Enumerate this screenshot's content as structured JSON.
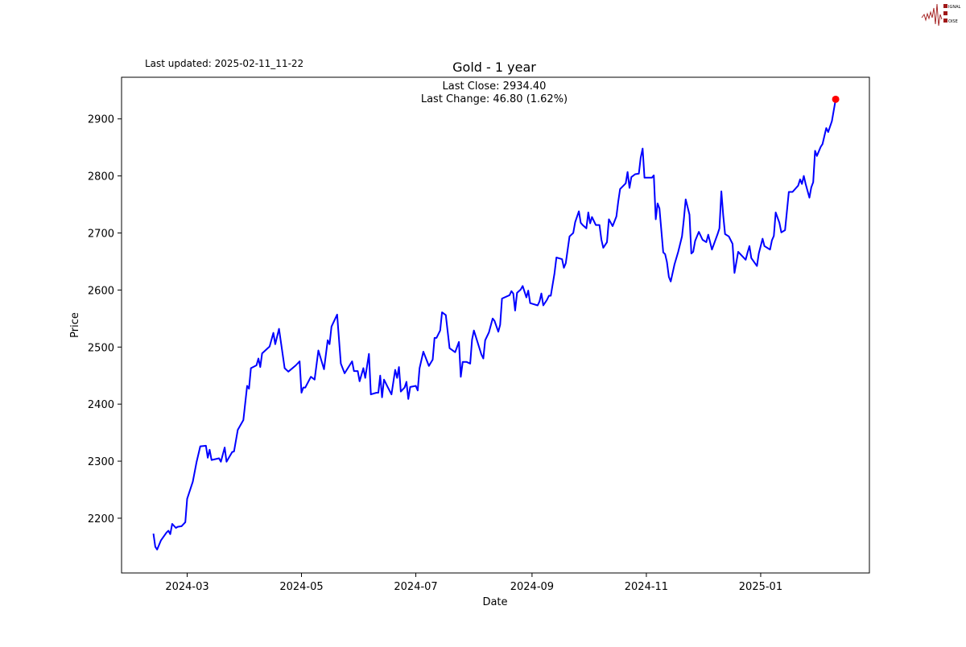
{
  "header": {
    "updated": "Last updated: 2025-02-11_11-22",
    "logo_text": "SIGNAL 2 NOISE"
  },
  "chart_data": {
    "type": "line",
    "title": "Gold - 1 year",
    "xlabel": "Date",
    "ylabel": "Price",
    "annotation": [
      "Last Close: 2934.40",
      "Last Change: 46.80 (1.62%)"
    ],
    "xlim": [
      "2024-01-26",
      "2025-02-28"
    ],
    "ylim": [
      2104,
      2973
    ],
    "grid": false,
    "line_color": "#0000ff",
    "last_point_color": "#ff0000",
    "x_ticks": [
      "2024-03",
      "2024-05",
      "2024-07",
      "2024-09",
      "2024-11",
      "2025-01"
    ],
    "y_ticks": [
      2200,
      2300,
      2400,
      2500,
      2600,
      2700,
      2800,
      2900
    ],
    "dates": [
      "2024-02-12",
      "2024-02-13",
      "2024-02-14",
      "2024-02-16",
      "2024-02-19",
      "2024-02-20",
      "2024-02-21",
      "2024-02-22",
      "2024-02-24",
      "2024-02-25",
      "2024-02-27",
      "2024-02-29",
      "2024-03-01",
      "2024-03-04",
      "2024-03-06",
      "2024-03-08",
      "2024-03-11",
      "2024-03-12",
      "2024-03-13",
      "2024-03-14",
      "2024-03-18",
      "2024-03-19",
      "2024-03-21",
      "2024-03-22",
      "2024-03-25",
      "2024-03-26",
      "2024-03-28",
      "2024-03-31",
      "2024-04-02",
      "2024-04-03",
      "2024-04-04",
      "2024-04-07",
      "2024-04-08",
      "2024-04-09",
      "2024-04-10",
      "2024-04-14",
      "2024-04-16",
      "2024-04-17",
      "2024-04-19",
      "2024-04-22",
      "2024-04-24",
      "2024-04-28",
      "2024-04-30",
      "2024-05-01",
      "2024-05-02",
      "2024-05-03",
      "2024-05-06",
      "2024-05-08",
      "2024-05-10",
      "2024-05-13",
      "2024-05-15",
      "2024-05-16",
      "2024-05-17",
      "2024-05-20",
      "2024-05-22",
      "2024-05-24",
      "2024-05-28",
      "2024-05-29",
      "2024-05-31",
      "2024-06-01",
      "2024-06-03",
      "2024-06-04",
      "2024-06-06",
      "2024-06-07",
      "2024-06-10",
      "2024-06-11",
      "2024-06-12",
      "2024-06-13",
      "2024-06-14",
      "2024-06-16",
      "2024-06-18",
      "2024-06-20",
      "2024-06-21",
      "2024-06-22",
      "2024-06-23",
      "2024-06-25",
      "2024-06-26",
      "2024-06-27",
      "2024-06-28",
      "2024-07-01",
      "2024-07-02",
      "2024-07-03",
      "2024-07-05",
      "2024-07-08",
      "2024-07-10",
      "2024-07-11",
      "2024-07-12",
      "2024-07-14",
      "2024-07-15",
      "2024-07-17",
      "2024-07-19",
      "2024-07-22",
      "2024-07-24",
      "2024-07-25",
      "2024-07-26",
      "2024-07-28",
      "2024-07-30",
      "2024-07-31",
      "2024-08-01",
      "2024-08-05",
      "2024-08-06",
      "2024-08-07",
      "2024-08-09",
      "2024-08-11",
      "2024-08-12",
      "2024-08-14",
      "2024-08-15",
      "2024-08-16",
      "2024-08-20",
      "2024-08-21",
      "2024-08-22",
      "2024-08-23",
      "2024-08-24",
      "2024-08-26",
      "2024-08-27",
      "2024-08-29",
      "2024-08-30",
      "2024-08-31",
      "2024-09-04",
      "2024-09-05",
      "2024-09-06",
      "2024-09-07",
      "2024-09-09",
      "2024-09-10",
      "2024-09-11",
      "2024-09-13",
      "2024-09-14",
      "2024-09-17",
      "2024-09-18",
      "2024-09-19",
      "2024-09-20",
      "2024-09-21",
      "2024-09-23",
      "2024-09-24",
      "2024-09-26",
      "2024-09-27",
      "2024-09-28",
      "2024-09-30",
      "2024-10-01",
      "2024-10-02",
      "2024-10-03",
      "2024-10-05",
      "2024-10-07",
      "2024-10-08",
      "2024-10-09",
      "2024-10-11",
      "2024-10-12",
      "2024-10-14",
      "2024-10-16",
      "2024-10-17",
      "2024-10-18",
      "2024-10-21",
      "2024-10-22",
      "2024-10-23",
      "2024-10-24",
      "2024-10-26",
      "2024-10-28",
      "2024-10-29",
      "2024-10-30",
      "2024-10-31",
      "2024-11-04",
      "2024-11-05",
      "2024-11-06",
      "2024-11-07",
      "2024-11-08",
      "2024-11-10",
      "2024-11-11",
      "2024-11-12",
      "2024-11-13",
      "2024-11-14",
      "2024-11-16",
      "2024-11-18",
      "2024-11-20",
      "2024-11-21",
      "2024-11-22",
      "2024-11-24",
      "2024-11-25",
      "2024-11-26",
      "2024-11-27",
      "2024-11-29",
      "2024-12-01",
      "2024-12-03",
      "2024-12-04",
      "2024-12-06",
      "2024-12-09",
      "2024-12-10",
      "2024-12-11",
      "2024-12-12",
      "2024-12-13",
      "2024-12-15",
      "2024-12-17",
      "2024-12-18",
      "2024-12-20",
      "2024-12-22",
      "2024-12-24",
      "2024-12-25",
      "2024-12-26",
      "2024-12-27",
      "2024-12-30",
      "2024-12-31",
      "2025-01-02",
      "2025-01-03",
      "2025-01-06",
      "2025-01-07",
      "2025-01-08",
      "2025-01-09",
      "2025-01-11",
      "2025-01-12",
      "2025-01-14",
      "2025-01-15",
      "2025-01-16",
      "2025-01-18",
      "2025-01-21",
      "2025-01-22",
      "2025-01-23",
      "2025-01-24",
      "2025-01-25",
      "2025-01-27",
      "2025-01-28",
      "2025-01-29",
      "2025-01-30",
      "2025-01-31",
      "2025-02-02",
      "2025-02-03",
      "2025-02-05",
      "2025-02-06",
      "2025-02-08",
      "2025-02-10"
    ],
    "values": [
      2173,
      2150,
      2145,
      2161,
      2175,
      2178,
      2172,
      2190,
      2183,
      2185,
      2186,
      2193,
      2234,
      2264,
      2298,
      2326,
      2327,
      2306,
      2320,
      2302,
      2305,
      2299,
      2324,
      2299,
      2316,
      2317,
      2355,
      2372,
      2432,
      2427,
      2463,
      2468,
      2480,
      2465,
      2489,
      2501,
      2525,
      2505,
      2532,
      2463,
      2457,
      2468,
      2475,
      2420,
      2429,
      2429,
      2448,
      2443,
      2494,
      2461,
      2512,
      2505,
      2536,
      2557,
      2471,
      2454,
      2475,
      2458,
      2458,
      2440,
      2463,
      2446,
      2488,
      2417,
      2420,
      2420,
      2450,
      2412,
      2443,
      2430,
      2417,
      2460,
      2446,
      2465,
      2422,
      2429,
      2439,
      2409,
      2430,
      2432,
      2424,
      2463,
      2492,
      2467,
      2478,
      2516,
      2516,
      2529,
      2561,
      2556,
      2498,
      2491,
      2509,
      2448,
      2474,
      2474,
      2471,
      2513,
      2529,
      2487,
      2480,
      2512,
      2526,
      2550,
      2546,
      2527,
      2539,
      2585,
      2591,
      2598,
      2594,
      2564,
      2595,
      2601,
      2607,
      2587,
      2599,
      2577,
      2573,
      2580,
      2594,
      2573,
      2583,
      2590,
      2590,
      2629,
      2657,
      2654,
      2639,
      2647,
      2670,
      2694,
      2700,
      2719,
      2738,
      2718,
      2714,
      2708,
      2736,
      2717,
      2728,
      2714,
      2714,
      2688,
      2674,
      2684,
      2724,
      2712,
      2729,
      2755,
      2777,
      2787,
      2807,
      2779,
      2798,
      2803,
      2804,
      2832,
      2848,
      2797,
      2797,
      2801,
      2724,
      2752,
      2743,
      2666,
      2663,
      2649,
      2623,
      2615,
      2645,
      2667,
      2694,
      2724,
      2759,
      2732,
      2664,
      2667,
      2686,
      2702,
      2688,
      2684,
      2697,
      2671,
      2698,
      2708,
      2773,
      2731,
      2698,
      2694,
      2681,
      2630,
      2667,
      2660,
      2653,
      2666,
      2677,
      2656,
      2642,
      2664,
      2690,
      2677,
      2671,
      2687,
      2695,
      2736,
      2718,
      2701,
      2705,
      2739,
      2772,
      2772,
      2783,
      2794,
      2786,
      2800,
      2786,
      2762,
      2780,
      2789,
      2844,
      2835,
      2851,
      2856,
      2884,
      2877,
      2896,
      2934.4
    ]
  }
}
